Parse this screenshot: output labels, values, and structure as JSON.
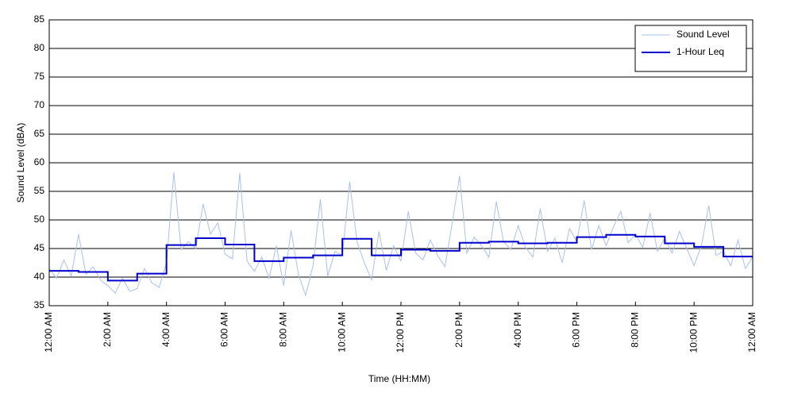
{
  "chart_data": {
    "type": "line",
    "x_label": "Time (HH:MM)",
    "y_label": "Sound Level (dBA)",
    "xlim": [
      0,
      24
    ],
    "ylim": [
      35,
      85
    ],
    "xticks": [
      {
        "value": 0,
        "label": "12:00 AM"
      },
      {
        "value": 2,
        "label": "2:00 AM"
      },
      {
        "value": 4,
        "label": "4:00 AM"
      },
      {
        "value": 6,
        "label": "6:00 AM"
      },
      {
        "value": 8,
        "label": "8:00 AM"
      },
      {
        "value": 10,
        "label": "10:00 AM"
      },
      {
        "value": 12,
        "label": "12:00 PM"
      },
      {
        "value": 14,
        "label": "2:00 PM"
      },
      {
        "value": 16,
        "label": "4:00 PM"
      },
      {
        "value": 18,
        "label": "6:00 PM"
      },
      {
        "value": 20,
        "label": "8:00 PM"
      },
      {
        "value": 22,
        "label": "10:00 PM"
      },
      {
        "value": 24,
        "label": "12:00 AM"
      }
    ],
    "yticks": [
      35,
      40,
      45,
      50,
      55,
      60,
      65,
      70,
      75,
      80,
      85
    ],
    "grid": true,
    "legend": "top-right",
    "series": [
      {
        "name": "Sound Level",
        "color": "#a8c0f0",
        "width": 1,
        "x": [
          0,
          0.25,
          0.5,
          0.75,
          1,
          1.25,
          1.5,
          1.75,
          2,
          2.25,
          2.5,
          2.75,
          3,
          3.25,
          3.5,
          3.75,
          4,
          4.25,
          4.5,
          4.75,
          5,
          5.25,
          5.5,
          5.75,
          6,
          6.25,
          6.5,
          6.75,
          7,
          7.25,
          7.5,
          7.75,
          8,
          8.25,
          8.5,
          8.75,
          9,
          9.25,
          9.5,
          9.75,
          10,
          10.25,
          10.5,
          10.75,
          11,
          11.25,
          11.5,
          11.75,
          12,
          12.25,
          12.5,
          12.75,
          13,
          13.25,
          13.5,
          13.75,
          14,
          14.25,
          14.5,
          14.75,
          15,
          15.25,
          15.5,
          15.75,
          16,
          16.25,
          16.5,
          16.75,
          17,
          17.25,
          17.5,
          17.75,
          18,
          18.25,
          18.5,
          18.75,
          19,
          19.25,
          19.5,
          19.75,
          20,
          20.25,
          20.5,
          20.75,
          21,
          21.25,
          21.5,
          21.75,
          22,
          22.25,
          22.5,
          22.75,
          23,
          23.25,
          23.5,
          23.75,
          24
        ],
        "values": [
          41.5,
          39.8,
          43.0,
          40.2,
          47.5,
          40.5,
          41.8,
          39.5,
          38.5,
          37.2,
          39.8,
          37.5,
          38.0,
          41.5,
          39.0,
          38.2,
          42.5,
          58.3,
          44.8,
          46.2,
          45.0,
          52.8,
          47.5,
          49.5,
          44.0,
          43.2,
          58.2,
          42.8,
          41.0,
          43.5,
          39.8,
          45.5,
          38.5,
          48.2,
          40.5,
          36.8,
          42.0,
          53.6,
          40.2,
          44.5,
          43.8,
          56.7,
          46.2,
          42.5,
          39.5,
          48.0,
          41.2,
          45.5,
          42.8,
          51.5,
          44.2,
          43.0,
          46.5,
          43.8,
          41.8,
          49.5,
          57.7,
          44.2,
          47.0,
          45.5,
          43.5,
          53.2,
          46.2,
          44.8,
          49.0,
          45.2,
          43.5,
          52.0,
          44.5,
          46.8,
          42.5,
          48.5,
          46.2,
          53.4,
          44.8,
          49.0,
          45.5,
          48.8,
          51.5,
          46.0,
          47.5,
          45.2,
          51.2,
          44.5,
          46.8,
          44.2,
          48.0,
          45.0,
          42.0,
          45.5,
          52.5,
          43.8,
          44.5,
          42.0,
          46.5,
          41.5,
          43.5
        ]
      },
      {
        "name": "1-Hour Leq",
        "color": "#0000cc",
        "width": 2,
        "step": "post",
        "x": [
          0,
          1,
          2,
          3,
          4,
          5,
          6,
          7,
          8,
          9,
          10,
          11,
          12,
          13,
          14,
          15,
          16,
          17,
          18,
          19,
          20,
          21,
          22,
          23
        ],
        "values": [
          41.1,
          40.9,
          39.4,
          40.6,
          45.6,
          46.8,
          45.7,
          42.8,
          43.4,
          43.8,
          46.7,
          43.8,
          44.8,
          44.6,
          46.0,
          46.2,
          45.9,
          46.0,
          47.0,
          47.4,
          47.1,
          45.9,
          45.3,
          43.6
        ]
      }
    ]
  }
}
